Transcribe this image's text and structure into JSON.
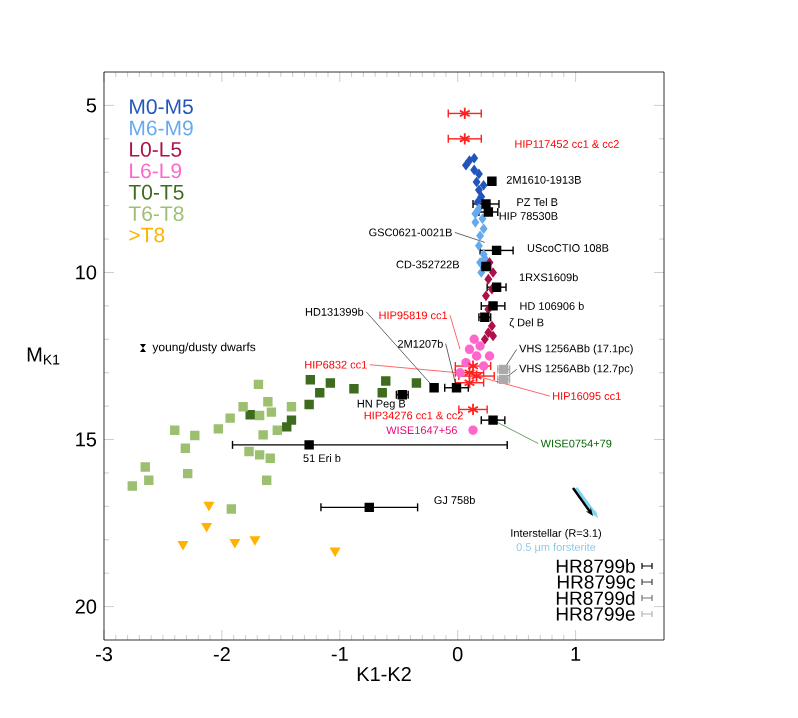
{
  "chart_data": {
    "type": "scatter",
    "xlabel": "K1-K2",
    "ylabel": "M$_{K1}$",
    "xlim": [
      -3,
      1.75
    ],
    "ylim": [
      21,
      4
    ],
    "xticks": [
      -3,
      -2,
      -1,
      0,
      1
    ],
    "yticks": [
      5,
      10,
      15,
      20
    ],
    "grid": false,
    "legend": "top left",
    "series": [
      {
        "name": "M0-M5",
        "color": "#2255bb",
        "marker": "diamond",
        "x": [
          0.07,
          0.1,
          0.14,
          0.14,
          0.18,
          0.16,
          0.18,
          0.2,
          0.17,
          0.22
        ],
        "values": [
          6.79,
          6.65,
          6.58,
          6.93,
          7.05,
          7.29,
          7.53,
          7.73,
          7.89,
          7.39
        ]
      },
      {
        "name": "M6-M9",
        "color": "#66aaee",
        "marker": "diamond",
        "x": [
          0.18,
          0.21,
          0.15,
          0.22,
          0.19,
          0.18,
          0.22,
          0.19,
          0.23,
          0.2,
          0.15
        ],
        "values": [
          8.09,
          8.39,
          8.5,
          8.69,
          8.9,
          9.2,
          9.46,
          9.7,
          9.58,
          10.0,
          8.24
        ]
      },
      {
        "name": "L0-L5",
        "color": "#b0104a",
        "marker": "diamond",
        "x": [
          0.27,
          0.3,
          0.26,
          0.29,
          0.24,
          0.26,
          0.29,
          0.26,
          0.3,
          0.23
        ],
        "values": [
          9.7,
          10.0,
          10.2,
          10.5,
          10.7,
          11.1,
          11.6,
          11.8,
          11.9,
          12.0
        ]
      },
      {
        "name": "L6-L9",
        "color": "#ff66cc",
        "marker": "circle",
        "x": [
          0.14,
          0.1,
          0.19,
          0.16,
          0.27,
          0.07,
          0.22,
          0.02,
          0.13
        ],
        "values": [
          12.0,
          12.3,
          12.2,
          12.5,
          12.5,
          12.7,
          12.8,
          13.0,
          14.72
        ]
      },
      {
        "name": "T0-T5",
        "color": "#3f6b1f",
        "marker": "square",
        "x": [
          -1.25,
          -1.17,
          -1.26,
          -1.08,
          -0.88,
          -0.64,
          -0.61,
          -1.41,
          -1.45,
          -1.76,
          -0.35
        ],
        "values": [
          13.21,
          13.6,
          13.95,
          13.31,
          13.48,
          13.6,
          13.25,
          14.42,
          14.62,
          14.26,
          13.31
        ]
      },
      {
        "name": "T6-T8",
        "color": "#9cc070",
        "marker": "square",
        "x": [
          -1.69,
          -1.61,
          -1.82,
          -1.68,
          -1.58,
          -1.41,
          -1.93,
          -2.03,
          -2.23,
          -2.4,
          -2.31,
          -2.29,
          -2.65,
          -2.62,
          -2.76,
          -1.77,
          -1.68,
          -1.59,
          -1.62,
          -1.92,
          -1.53,
          -1.65
        ],
        "values": [
          13.35,
          13.87,
          14.02,
          14.28,
          14.18,
          14.02,
          14.36,
          14.68,
          14.88,
          14.72,
          15.26,
          16.02,
          15.82,
          16.22,
          16.39,
          15.36,
          15.46,
          15.56,
          16.22,
          17.08,
          14.72,
          14.86
        ]
      },
      {
        "name": ">T8",
        "color": "#ffb300",
        "marker": "triangle",
        "x": [
          -2.11,
          -2.13,
          -2.33,
          -1.89,
          -1.72,
          -1.04
        ],
        "values": [
          16.96,
          17.59,
          18.13,
          18.07,
          17.99,
          18.33
        ]
      },
      {
        "color": "#000000",
        "marker": "square",
        "x": [
          0.29,
          0.24,
          0.26,
          0.33,
          0.24,
          0.33,
          0.3,
          0.23,
          -0.2,
          -0.01,
          -0.47,
          0.3,
          -1.26,
          -0.75
        ],
        "values": [
          7.27,
          7.95,
          8.19,
          9.34,
          9.82,
          10.44,
          11.0,
          11.34,
          13.45,
          13.45,
          13.66,
          14.42,
          15.16,
          17.03
        ],
        "xerrors": [
          0.03,
          0.11,
          0.08,
          0.14,
          0.04,
          0.08,
          0.1,
          0.05,
          null,
          0.1,
          0.05,
          0.1,
          [
            -1.91,
            0.42
          ],
          0.41
        ]
      },
      {
        "color": "#aaaaaa",
        "marker": "square",
        "x": [
          0.39,
          0.39
        ],
        "values": [
          12.9,
          13.2
        ],
        "xerrors": [
          0.05,
          0.05
        ]
      },
      {
        "color": "#ff2020",
        "marker": "cross",
        "x": [
          0.06,
          0.06,
          0.13,
          0.16,
          0.1,
          0.1,
          0.13
        ],
        "values": [
          5.24,
          6.0,
          12.8,
          13.1,
          13.0,
          13.3,
          14.1
        ],
        "xerrors": [
          0.14,
          0.14,
          0.15,
          0.15,
          0.12,
          0.12,
          0.12
        ]
      }
    ],
    "annotations": [
      {
        "text": "2M1610-1913B",
        "x": 0.29,
        "y": 7.27
      },
      {
        "text": "PZ Tel B",
        "x": 0.24,
        "y": 7.95
      },
      {
        "text": "HIP 78530B",
        "x": 0.26,
        "y": 8.19
      },
      {
        "text": "GSC0621-0021B",
        "x": 0.23,
        "y": 9.1
      },
      {
        "text": "CD-352722B",
        "x": 0.24,
        "y": 9.82
      },
      {
        "text": "1RXS1609b",
        "x": 0.33,
        "y": 10.44
      },
      {
        "text": "HD 106906 b",
        "x": 0.3,
        "y": 11.0
      },
      {
        "text": "ζ Del B",
        "x": 0.23,
        "y": 11.34
      },
      {
        "text": "HIP95819 cc1",
        "x": 0.02,
        "y": 12.3
      },
      {
        "text": "VHS 1256ABb (17.1pc)",
        "x": 0.39,
        "y": 12.9
      },
      {
        "text": "VHS 1256ABb (12.7pc)",
        "x": 0.39,
        "y": 13.2
      },
      {
        "text": "HD131399b",
        "x": -0.2,
        "y": 13.45
      },
      {
        "text": "2M1207b",
        "x": -0.01,
        "y": 13.45
      },
      {
        "text": "HIP6832 cc1",
        "x": 0.0,
        "y": 13.0
      },
      {
        "text": "HIP16095 cc1",
        "x": 0.16,
        "y": 13.1
      },
      {
        "text": "HN Peg B",
        "x": -0.47,
        "y": 13.66
      },
      {
        "text": "HIP34276 cc1 & cc2",
        "x": 0.13,
        "y": 14.1
      },
      {
        "text": "WISE1647+56",
        "x": 0.13,
        "y": 14.72
      },
      {
        "text": "WISE0754+79",
        "x": 0.3,
        "y": 14.42
      },
      {
        "text": "51 Eri b",
        "x": -1.26,
        "y": 15.16
      },
      "HIP117452 cc1 & cc2",
      "UScoCTIO 108B",
      "GJ 758b",
      "young/dusty dwarfs",
      "Interstellar (R=3.1)",
      "0.5 µm forsterite",
      "HR8799b",
      "HR8799c",
      "HR8799d",
      "HR8799e"
    ]
  }
}
